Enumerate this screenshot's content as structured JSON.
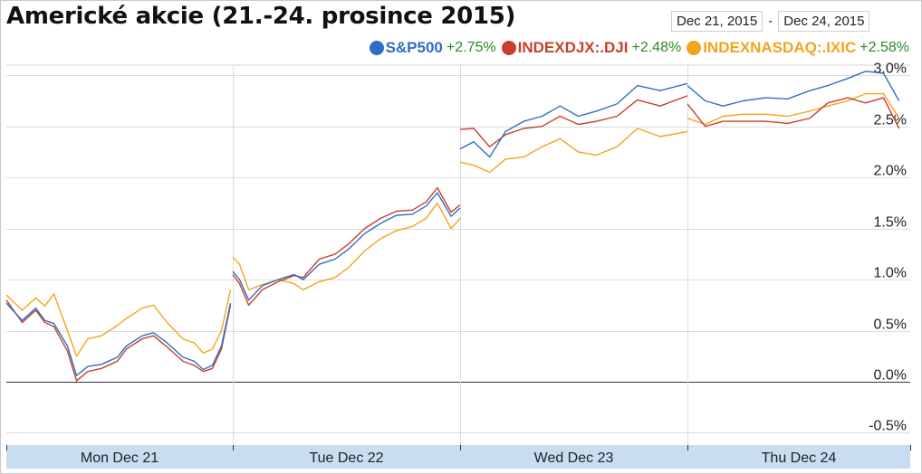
{
  "title": "Americké akcie (21.-24. prosince 2015)",
  "date_range": {
    "start": "Dec 21, 2015",
    "separator": "-",
    "end": "Dec 24, 2015"
  },
  "legend": [
    {
      "name": "S&P500",
      "change": "+2.75%",
      "color": "#2e6fc4"
    },
    {
      "name": "INDEXDJX:.DJI",
      "change": "+2.48%",
      "color": "#c8402a"
    },
    {
      "name": "INDEXNASDAQ:.IXIC",
      "change": "+2.58%",
      "color": "#f5a31d"
    }
  ],
  "chart_data": {
    "type": "line",
    "title": "Americké akcie (21.-24. prosince 2015)",
    "xlabel": "",
    "ylabel": "",
    "x_labels": [
      "Mon Dec 21",
      "Tue Dec 22",
      "Wed Dec 23",
      "Thu Dec 24"
    ],
    "y_ticks": [
      "3.0%",
      "2.5%",
      "2.0%",
      "1.5%",
      "1.0%",
      "0.5%",
      "0.0%",
      "-0.5%"
    ],
    "y_tick_values": [
      3.0,
      2.5,
      2.0,
      1.5,
      1.0,
      0.5,
      0.0,
      -0.5
    ],
    "ylim": [
      -0.62,
      3.1
    ],
    "xlim": [
      0,
      4
    ],
    "grid": true,
    "legend_position": "top-right",
    "series": [
      {
        "name": "S&P500",
        "color": "#2e6fc4",
        "days": [
          [
            [
              0.0,
              0.77
            ],
            [
              0.07,
              0.6
            ],
            [
              0.13,
              0.72
            ],
            [
              0.17,
              0.6
            ],
            [
              0.21,
              0.57
            ],
            [
              0.27,
              0.35
            ],
            [
              0.31,
              0.06
            ],
            [
              0.36,
              0.15
            ],
            [
              0.42,
              0.17
            ],
            [
              0.49,
              0.24
            ],
            [
              0.53,
              0.35
            ],
            [
              0.6,
              0.45
            ],
            [
              0.65,
              0.48
            ],
            [
              0.71,
              0.38
            ],
            [
              0.78,
              0.24
            ],
            [
              0.83,
              0.2
            ],
            [
              0.87,
              0.12
            ],
            [
              0.91,
              0.16
            ],
            [
              0.95,
              0.35
            ],
            [
              0.99,
              0.77
            ]
          ],
          [
            [
              0.0,
              1.08
            ],
            [
              0.03,
              1.0
            ],
            [
              0.07,
              0.8
            ],
            [
              0.13,
              0.94
            ],
            [
              0.2,
              1.0
            ],
            [
              0.27,
              1.05
            ],
            [
              0.31,
              1.0
            ],
            [
              0.38,
              1.15
            ],
            [
              0.45,
              1.2
            ],
            [
              0.51,
              1.3
            ],
            [
              0.58,
              1.45
            ],
            [
              0.65,
              1.55
            ],
            [
              0.72,
              1.63
            ],
            [
              0.79,
              1.64
            ],
            [
              0.85,
              1.72
            ],
            [
              0.9,
              1.85
            ],
            [
              0.96,
              1.62
            ],
            [
              1.0,
              1.7
            ]
          ],
          [
            [
              0.0,
              2.28
            ],
            [
              0.06,
              2.35
            ],
            [
              0.13,
              2.2
            ],
            [
              0.2,
              2.45
            ],
            [
              0.28,
              2.55
            ],
            [
              0.36,
              2.6
            ],
            [
              0.44,
              2.7
            ],
            [
              0.52,
              2.6
            ],
            [
              0.6,
              2.65
            ],
            [
              0.69,
              2.72
            ],
            [
              0.78,
              2.9
            ],
            [
              0.88,
              2.85
            ],
            [
              1.0,
              2.92
            ]
          ],
          [
            [
              0.0,
              2.9
            ],
            [
              0.08,
              2.75
            ],
            [
              0.16,
              2.7
            ],
            [
              0.25,
              2.75
            ],
            [
              0.35,
              2.78
            ],
            [
              0.45,
              2.77
            ],
            [
              0.55,
              2.85
            ],
            [
              0.63,
              2.9
            ],
            [
              0.72,
              2.97
            ],
            [
              0.8,
              3.04
            ],
            [
              0.88,
              3.02
            ],
            [
              0.95,
              2.75
            ]
          ]
        ]
      },
      {
        "name": "INDEXDJX:.DJI",
        "color": "#c8402a",
        "days": [
          [
            [
              0.0,
              0.8
            ],
            [
              0.07,
              0.58
            ],
            [
              0.13,
              0.7
            ],
            [
              0.17,
              0.58
            ],
            [
              0.21,
              0.54
            ],
            [
              0.27,
              0.3
            ],
            [
              0.31,
              0.01
            ],
            [
              0.36,
              0.1
            ],
            [
              0.42,
              0.13
            ],
            [
              0.49,
              0.2
            ],
            [
              0.53,
              0.32
            ],
            [
              0.6,
              0.42
            ],
            [
              0.65,
              0.45
            ],
            [
              0.71,
              0.34
            ],
            [
              0.78,
              0.2
            ],
            [
              0.83,
              0.16
            ],
            [
              0.87,
              0.1
            ],
            [
              0.91,
              0.13
            ],
            [
              0.95,
              0.32
            ],
            [
              0.99,
              0.75
            ]
          ],
          [
            [
              0.0,
              1.05
            ],
            [
              0.03,
              0.96
            ],
            [
              0.07,
              0.75
            ],
            [
              0.13,
              0.9
            ],
            [
              0.2,
              0.98
            ],
            [
              0.27,
              1.04
            ],
            [
              0.31,
              1.02
            ],
            [
              0.38,
              1.2
            ],
            [
              0.45,
              1.25
            ],
            [
              0.51,
              1.35
            ],
            [
              0.58,
              1.5
            ],
            [
              0.65,
              1.6
            ],
            [
              0.72,
              1.67
            ],
            [
              0.79,
              1.68
            ],
            [
              0.85,
              1.76
            ],
            [
              0.9,
              1.9
            ],
            [
              0.96,
              1.66
            ],
            [
              1.0,
              1.73
            ]
          ],
          [
            [
              0.0,
              2.47
            ],
            [
              0.06,
              2.48
            ],
            [
              0.13,
              2.3
            ],
            [
              0.2,
              2.42
            ],
            [
              0.28,
              2.48
            ],
            [
              0.36,
              2.5
            ],
            [
              0.44,
              2.6
            ],
            [
              0.52,
              2.52
            ],
            [
              0.6,
              2.55
            ],
            [
              0.69,
              2.6
            ],
            [
              0.78,
              2.76
            ],
            [
              0.88,
              2.7
            ],
            [
              1.0,
              2.8
            ]
          ],
          [
            [
              0.0,
              2.72
            ],
            [
              0.08,
              2.5
            ],
            [
              0.16,
              2.55
            ],
            [
              0.25,
              2.55
            ],
            [
              0.35,
              2.55
            ],
            [
              0.45,
              2.53
            ],
            [
              0.55,
              2.58
            ],
            [
              0.63,
              2.73
            ],
            [
              0.72,
              2.78
            ],
            [
              0.8,
              2.73
            ],
            [
              0.88,
              2.78
            ],
            [
              0.95,
              2.48
            ]
          ]
        ]
      },
      {
        "name": "INDEXNASDAQ:.IXIC",
        "color": "#f5a31d",
        "days": [
          [
            [
              0.0,
              0.85
            ],
            [
              0.07,
              0.7
            ],
            [
              0.13,
              0.82
            ],
            [
              0.17,
              0.74
            ],
            [
              0.21,
              0.86
            ],
            [
              0.27,
              0.5
            ],
            [
              0.31,
              0.25
            ],
            [
              0.36,
              0.42
            ],
            [
              0.42,
              0.45
            ],
            [
              0.49,
              0.55
            ],
            [
              0.53,
              0.62
            ],
            [
              0.6,
              0.72
            ],
            [
              0.65,
              0.75
            ],
            [
              0.71,
              0.58
            ],
            [
              0.78,
              0.42
            ],
            [
              0.83,
              0.38
            ],
            [
              0.87,
              0.28
            ],
            [
              0.91,
              0.32
            ],
            [
              0.95,
              0.5
            ],
            [
              0.99,
              0.9
            ]
          ],
          [
            [
              0.0,
              1.22
            ],
            [
              0.03,
              1.15
            ],
            [
              0.07,
              0.9
            ],
            [
              0.13,
              0.95
            ],
            [
              0.2,
              1.0
            ],
            [
              0.27,
              0.96
            ],
            [
              0.31,
              0.9
            ],
            [
              0.38,
              0.98
            ],
            [
              0.45,
              1.02
            ],
            [
              0.51,
              1.12
            ],
            [
              0.58,
              1.28
            ],
            [
              0.65,
              1.4
            ],
            [
              0.72,
              1.48
            ],
            [
              0.79,
              1.52
            ],
            [
              0.85,
              1.6
            ],
            [
              0.9,
              1.75
            ],
            [
              0.96,
              1.5
            ],
            [
              1.0,
              1.6
            ]
          ],
          [
            [
              0.0,
              2.15
            ],
            [
              0.06,
              2.12
            ],
            [
              0.13,
              2.05
            ],
            [
              0.2,
              2.18
            ],
            [
              0.28,
              2.2
            ],
            [
              0.36,
              2.3
            ],
            [
              0.44,
              2.38
            ],
            [
              0.52,
              2.25
            ],
            [
              0.6,
              2.22
            ],
            [
              0.69,
              2.3
            ],
            [
              0.78,
              2.48
            ],
            [
              0.88,
              2.4
            ],
            [
              1.0,
              2.45
            ]
          ],
          [
            [
              0.0,
              2.58
            ],
            [
              0.08,
              2.52
            ],
            [
              0.16,
              2.6
            ],
            [
              0.25,
              2.62
            ],
            [
              0.35,
              2.62
            ],
            [
              0.45,
              2.6
            ],
            [
              0.55,
              2.65
            ],
            [
              0.63,
              2.7
            ],
            [
              0.72,
              2.75
            ],
            [
              0.8,
              2.82
            ],
            [
              0.88,
              2.82
            ],
            [
              0.95,
              2.58
            ]
          ]
        ]
      }
    ]
  }
}
